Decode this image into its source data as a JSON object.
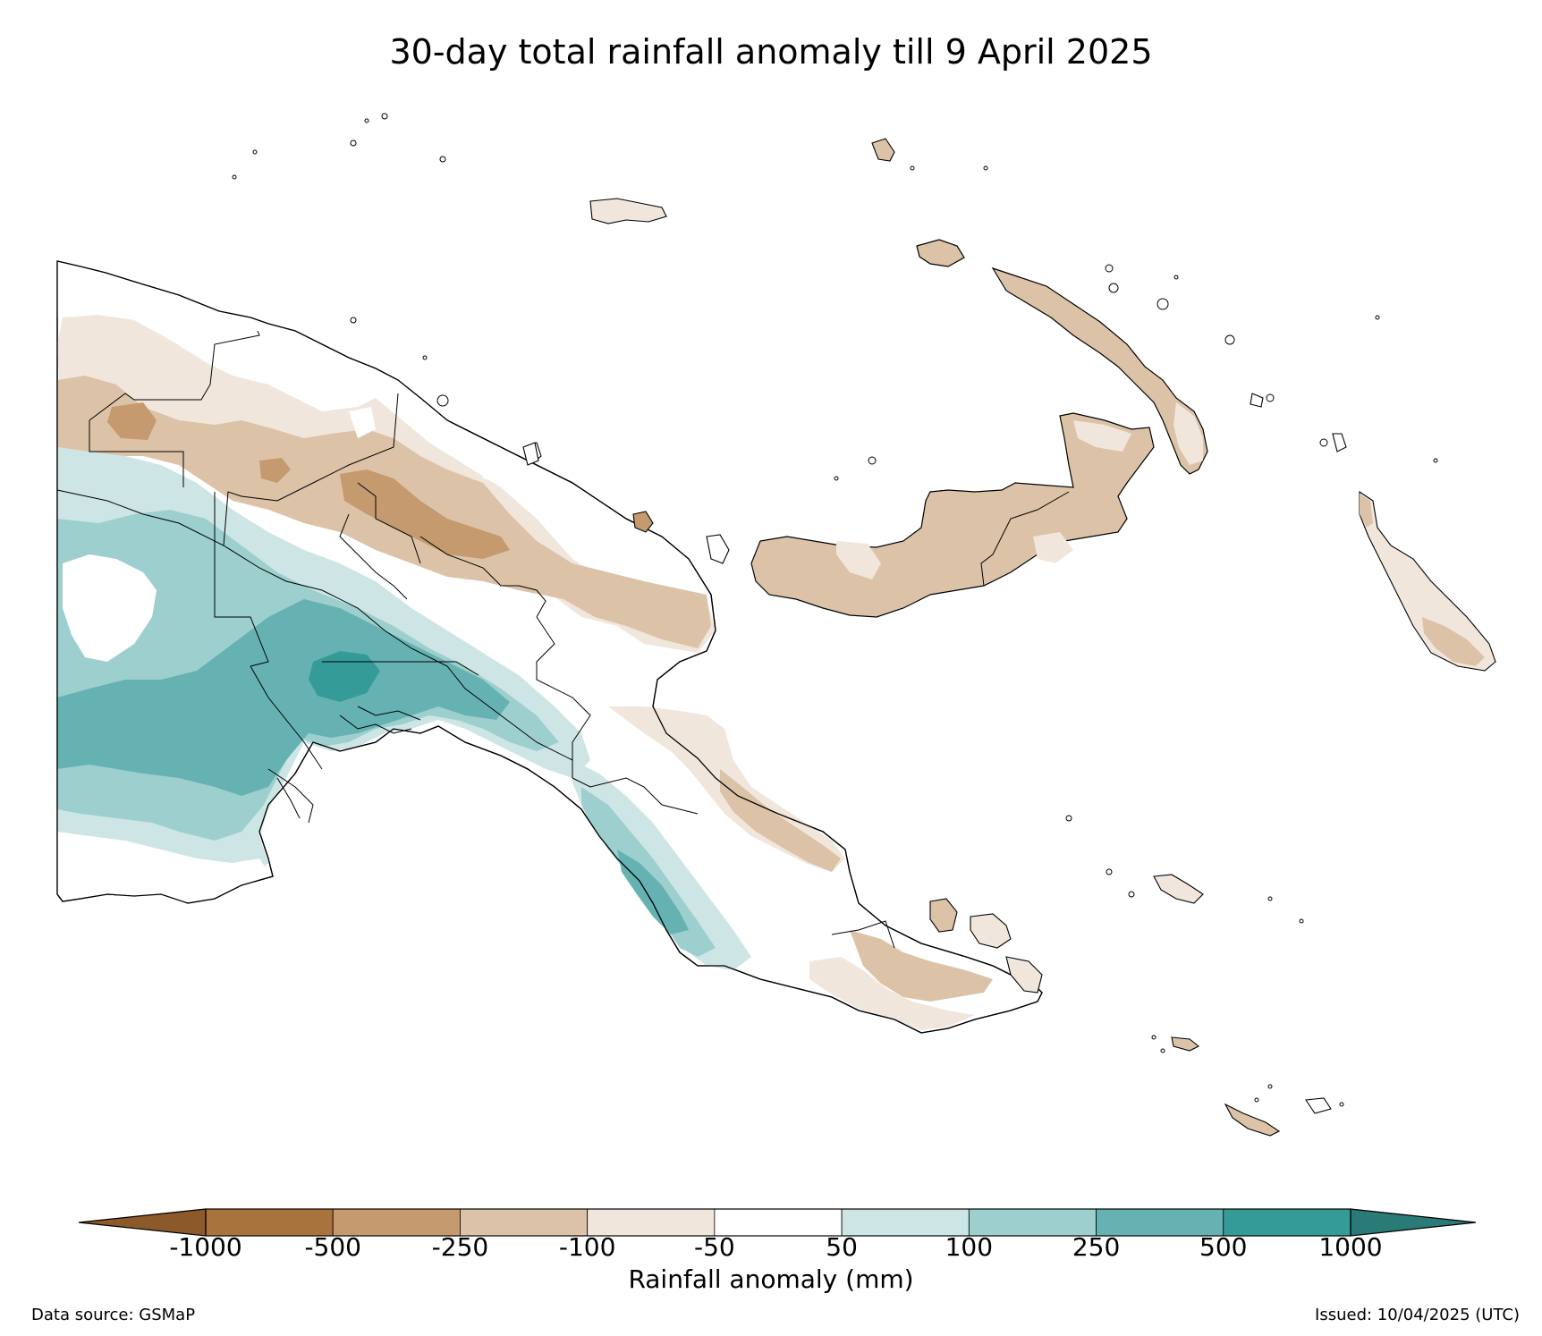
{
  "title": "30-day total rainfall anomaly till 9 April 2025",
  "colorbar": {
    "label": "Rainfall anomaly (mm)",
    "ticks": [
      "-1000",
      "-500",
      "-250",
      "-100",
      "-50",
      "50",
      "100",
      "250",
      "500",
      "1000"
    ],
    "under_color": "#8c5a2a",
    "over_color": "#2a7a78",
    "bins": [
      {
        "from": -1000,
        "to": -500,
        "color": "#a8733c"
      },
      {
        "from": -500,
        "to": -250,
        "color": "#c49a6e"
      },
      {
        "from": -250,
        "to": -100,
        "color": "#dcc3a8"
      },
      {
        "from": -100,
        "to": -50,
        "color": "#f1e6dc"
      },
      {
        "from": -50,
        "to": 50,
        "color": "#ffffff"
      },
      {
        "from": 50,
        "to": 100,
        "color": "#cde6e5"
      },
      {
        "from": 100,
        "to": 250,
        "color": "#9dcfcf"
      },
      {
        "from": 250,
        "to": 500,
        "color": "#66b2b2"
      },
      {
        "from": 500,
        "to": 1000,
        "color": "#359b98"
      }
    ]
  },
  "footer": {
    "source": "Data source: GSMaP",
    "issued": "Issued: 10/04/2025 (UTC)"
  },
  "legend_colors": {
    "dry_strong": "#c49a6e",
    "dry": "#dcc3a8",
    "dry_light": "#f1e6dc",
    "wet_light": "#cde6e5",
    "wet": "#9dcfcf",
    "wet_mid": "#66b2b2",
    "wet_strong": "#359b98",
    "coast": "#000000"
  }
}
